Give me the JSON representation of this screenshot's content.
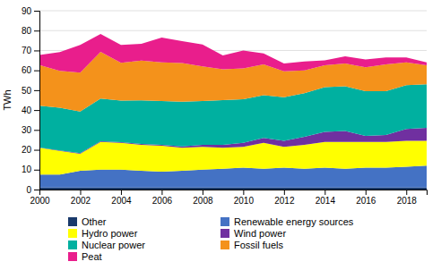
{
  "chart_data": {
    "type": "area",
    "stacked": true,
    "grid": true,
    "legend": "bottom",
    "ylabel": "TWh",
    "x": [
      2000,
      2001,
      2002,
      2003,
      2004,
      2005,
      2006,
      2007,
      2008,
      2009,
      2010,
      2011,
      2012,
      2013,
      2014,
      2015,
      2016,
      2017,
      2018,
      2019
    ],
    "xlim": [
      2000,
      2019
    ],
    "xticks": [
      2000,
      2002,
      2004,
      2006,
      2008,
      2010,
      2012,
      2014,
      2016,
      2018
    ],
    "ylim": [
      0,
      90
    ],
    "yticks": [
      0,
      10,
      20,
      30,
      40,
      50,
      60,
      70,
      80,
      90
    ],
    "series": [
      {
        "name": "Other",
        "color": "#1a3a6b",
        "values": [
          1.0,
          1.0,
          1.0,
          1.0,
          1.0,
          1.0,
          1.0,
          1.0,
          1.0,
          1.0,
          1.0,
          1.0,
          1.0,
          1.0,
          1.0,
          1.0,
          1.0,
          1.0,
          1.0,
          1.0
        ]
      },
      {
        "name": "Renewable energy sources",
        "color": "#4472c4",
        "values": [
          6.5,
          6.5,
          8.5,
          9.0,
          9.0,
          8.5,
          8.0,
          8.5,
          9.0,
          9.5,
          10.0,
          9.5,
          10.0,
          9.5,
          10.0,
          9.5,
          10.0,
          10.0,
          10.5,
          11.0
        ]
      },
      {
        "name": "Hydro power",
        "color": "#ffff00",
        "values": [
          13.5,
          12.0,
          8.5,
          14.0,
          13.5,
          13.0,
          13.0,
          11.5,
          11.5,
          10.5,
          10.5,
          13.0,
          10.5,
          12.0,
          13.0,
          13.5,
          13.0,
          13.0,
          13.0,
          12.5
        ]
      },
      {
        "name": "Wind power",
        "color": "#7030a0",
        "values": [
          0.2,
          0.2,
          0.3,
          0.3,
          0.3,
          0.4,
          0.5,
          0.7,
          1.0,
          1.5,
          2.0,
          2.5,
          3.0,
          4.0,
          5.0,
          5.5,
          3.0,
          3.5,
          6.0,
          6.5
        ]
      },
      {
        "name": "Nuclear power",
        "color": "#00b0a0",
        "values": [
          21.0,
          21.5,
          21.0,
          21.5,
          21.0,
          22.0,
          22.0,
          22.5,
          22.0,
          22.5,
          22.0,
          21.5,
          22.0,
          22.0,
          22.5,
          22.5,
          22.5,
          22.0,
          22.0,
          22.0
        ]
      },
      {
        "name": "Fossil fuels",
        "color": "#f4921b",
        "values": [
          20.5,
          18.5,
          19.5,
          23.5,
          19.0,
          20.0,
          19.5,
          19.5,
          17.5,
          15.5,
          15.5,
          15.5,
          13.0,
          11.5,
          11.0,
          11.5,
          12.0,
          13.5,
          11.5,
          9.5
        ]
      },
      {
        "name": "Peat",
        "color": "#e91e8c",
        "values": [
          5.0,
          9.5,
          14.0,
          9.0,
          9.0,
          8.5,
          12.5,
          11.0,
          11.0,
          7.0,
          9.0,
          5.5,
          4.0,
          4.5,
          2.5,
          3.5,
          4.0,
          3.5,
          2.5,
          1.5
        ]
      }
    ]
  }
}
